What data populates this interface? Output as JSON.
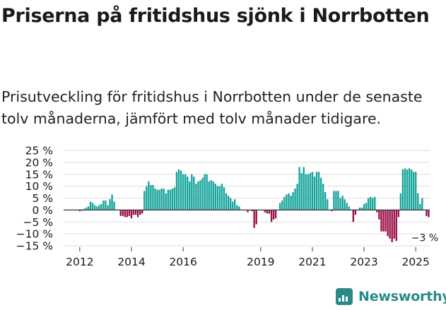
{
  "title": "Priserna på fritidshus sjönk i Norrbotten",
  "subtitle": "Prisutveckling för fritidshus i Norrbotten under de senaste tolv månaderna, jämfört med tolv månader tidigare.",
  "brand": {
    "name": "Newsworthy",
    "color": "#2a8b86"
  },
  "colors": {
    "positive": "#14a39a",
    "negative": "#9c0f4a",
    "grid": "#dddddd",
    "zero_line": "#333333"
  },
  "chart_data": {
    "type": "bar",
    "ylim": [
      -15,
      25
    ],
    "yticks": [
      25,
      20,
      15,
      10,
      5,
      0,
      -5,
      -10,
      -15
    ],
    "ytick_labels": [
      "25 %",
      "20 %",
      "15 %",
      "10 %",
      "5 %",
      "0 %",
      "−5 %",
      "−10 %",
      "−15 %"
    ],
    "xticks": [
      {
        "label": "2012",
        "index": 7
      },
      {
        "label": "2014",
        "index": 31
      },
      {
        "label": "2016",
        "index": 55
      },
      {
        "label": "2019",
        "index": 91
      },
      {
        "label": "2021",
        "index": 115
      },
      {
        "label": "2023",
        "index": 139
      },
      {
        "label": "2025",
        "index": 163
      }
    ],
    "annotation": {
      "text": "−3 %",
      "index": 173,
      "value": -3
    },
    "first_month": "2011-06",
    "values": [
      0,
      0,
      0,
      0,
      0,
      0,
      0,
      -0.5,
      -0.3,
      0.5,
      1,
      1.5,
      3.5,
      3,
      2,
      1.5,
      2,
      2.5,
      4,
      4,
      2,
      4.5,
      6.5,
      3.5,
      0,
      0,
      -2.5,
      -2.5,
      -3,
      -3,
      -2.5,
      -3.5,
      -2,
      -2,
      -3,
      -2,
      -1.5,
      8,
      10,
      12,
      10.5,
      10.5,
      9,
      8.5,
      8.5,
      9,
      9,
      7,
      8.5,
      8.5,
      9,
      9.5,
      16,
      17,
      16.5,
      15,
      15,
      14,
      12,
      15,
      14,
      11,
      12,
      12.5,
      13.5,
      15,
      15,
      12,
      12.5,
      12,
      11,
      10,
      10,
      11,
      9.5,
      7,
      6,
      5,
      3.5,
      4.5,
      2,
      1.5,
      0,
      0,
      0,
      -1,
      0,
      -0.5,
      -7.5,
      -6,
      0,
      0,
      0,
      -1,
      -1.5,
      -1.5,
      -5,
      -4,
      -3.5,
      0,
      3,
      4,
      5.5,
      6.5,
      7,
      6,
      7.5,
      9,
      11,
      18,
      15.5,
      18,
      15,
      15,
      15.5,
      16,
      14,
      16,
      16,
      13.5,
      11,
      7.5,
      4.5,
      0,
      -0.5,
      8,
      8,
      8,
      5,
      6,
      4.5,
      3,
      1.5,
      0,
      -5,
      -2,
      0,
      1,
      1,
      2.5,
      3,
      5,
      5.5,
      5,
      5.5,
      -1,
      -4,
      -9,
      -9,
      -9,
      -11,
      -12,
      -13.5,
      -12,
      -13,
      -3,
      7,
      17,
      17.5,
      17,
      17.5,
      17,
      16,
      16,
      7,
      2.5,
      5,
      0,
      -2.5,
      -3
    ]
  }
}
